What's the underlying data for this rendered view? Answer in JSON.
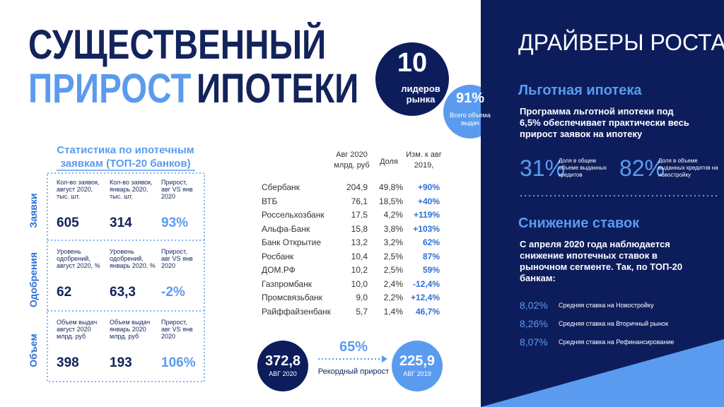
{
  "title": {
    "line1": "СУЩЕСТВЕННЫЙ",
    "line2a": "ПРИРОСТ",
    "line2b": "ИПОТЕКИ"
  },
  "circle_leaders": {
    "value": "10",
    "text": "лидеров рынка"
  },
  "circle_share": {
    "value": "91%",
    "text": "Всего объема выдач"
  },
  "stats": {
    "title": "Статистика по ипотечным заявкам (ТОП-20 банков)",
    "rows": [
      {
        "label": "Заявки",
        "headers": [
          "Кол-во заявок, август 2020, тыс. шт.",
          "Кол-во заявок, январь 2020, тыс. шт.",
          "Прирост, авг VS янв 2020"
        ],
        "values": [
          "605",
          "314",
          "93%"
        ]
      },
      {
        "label": "Одобрения",
        "headers": [
          "Уровень одобрений, август 2020, %",
          "Уровень одобрений, январь 2020, %",
          "Прирост, авг VS янв 2020"
        ],
        "values": [
          "62",
          "63,3",
          "-2%"
        ]
      },
      {
        "label": "Объем",
        "headers": [
          "Объем выдач август 2020 млрд. руб",
          "Объем выдач январь 2020 млрд. руб",
          "Прирост, авг VS янв 2020"
        ],
        "values": [
          "398",
          "193",
          "106%"
        ]
      }
    ]
  },
  "banks": {
    "headers": [
      "Авг 2020 млрд. руб",
      "Доля",
      "Изм. к авг 2019,"
    ],
    "rows": [
      [
        "Сбербанк",
        "204,9",
        "49,8%",
        "+90%"
      ],
      [
        "ВТБ",
        "76,1",
        "18,5%",
        "+40%"
      ],
      [
        "Россельхозбанк",
        "17,5",
        "4,2%",
        "+119%"
      ],
      [
        "Альфа-Банк",
        "15,8",
        "3,8%",
        "+103%"
      ],
      [
        "Банк Открытие",
        "13,2",
        "3,2%",
        "62%"
      ],
      [
        "Росбанк",
        "10,4",
        "2,5%",
        "87%"
      ],
      [
        "ДОМ.РФ",
        "10,2",
        "2,5%",
        "59%"
      ],
      [
        "Газпромбанк",
        "10,0",
        "2,4%",
        "-12,4%"
      ],
      [
        "Промсвязьбанк",
        "9,0",
        "2,2%",
        "+12,4%"
      ],
      [
        "Райффайзенбанк",
        "5,7",
        "1,4%",
        "46,7%"
      ]
    ]
  },
  "totals": {
    "current": {
      "value": "372,8",
      "label": "АВГ 2020"
    },
    "growth": {
      "value": "65%",
      "label": "Рекордный прирост"
    },
    "previous": {
      "value": "225,9",
      "label": "АВГ 2019"
    }
  },
  "drivers": {
    "title": "ДРАЙВЕРЫ РОСТА",
    "preferential": {
      "title": "Льготная ипотека",
      "text": "Программа льготной ипотеки под 6,5% обеспечивает практически весь прирост заявок на ипотеку",
      "stats": [
        {
          "value": "31%",
          "label": "Доля в общем объеме выданных кредитов"
        },
        {
          "value": "82%",
          "label": "Доля в объеме выданных кредитов на новостройку"
        }
      ]
    },
    "rates": {
      "title": "Снижение ставок",
      "text": "С апреля 2020 года наблюдается снижение ипотечных ставок в рыночном сегменте. Так, по ТОП-20 банкам:",
      "items": [
        {
          "value": "8,02%",
          "label": "Средняя ставка на Новостройку"
        },
        {
          "value": "8,26%",
          "label": "Средняя ставка на Вторичный рынок"
        },
        {
          "value": "8,07%",
          "label": "Средняя ставка на Рефинансирование"
        }
      ]
    }
  }
}
